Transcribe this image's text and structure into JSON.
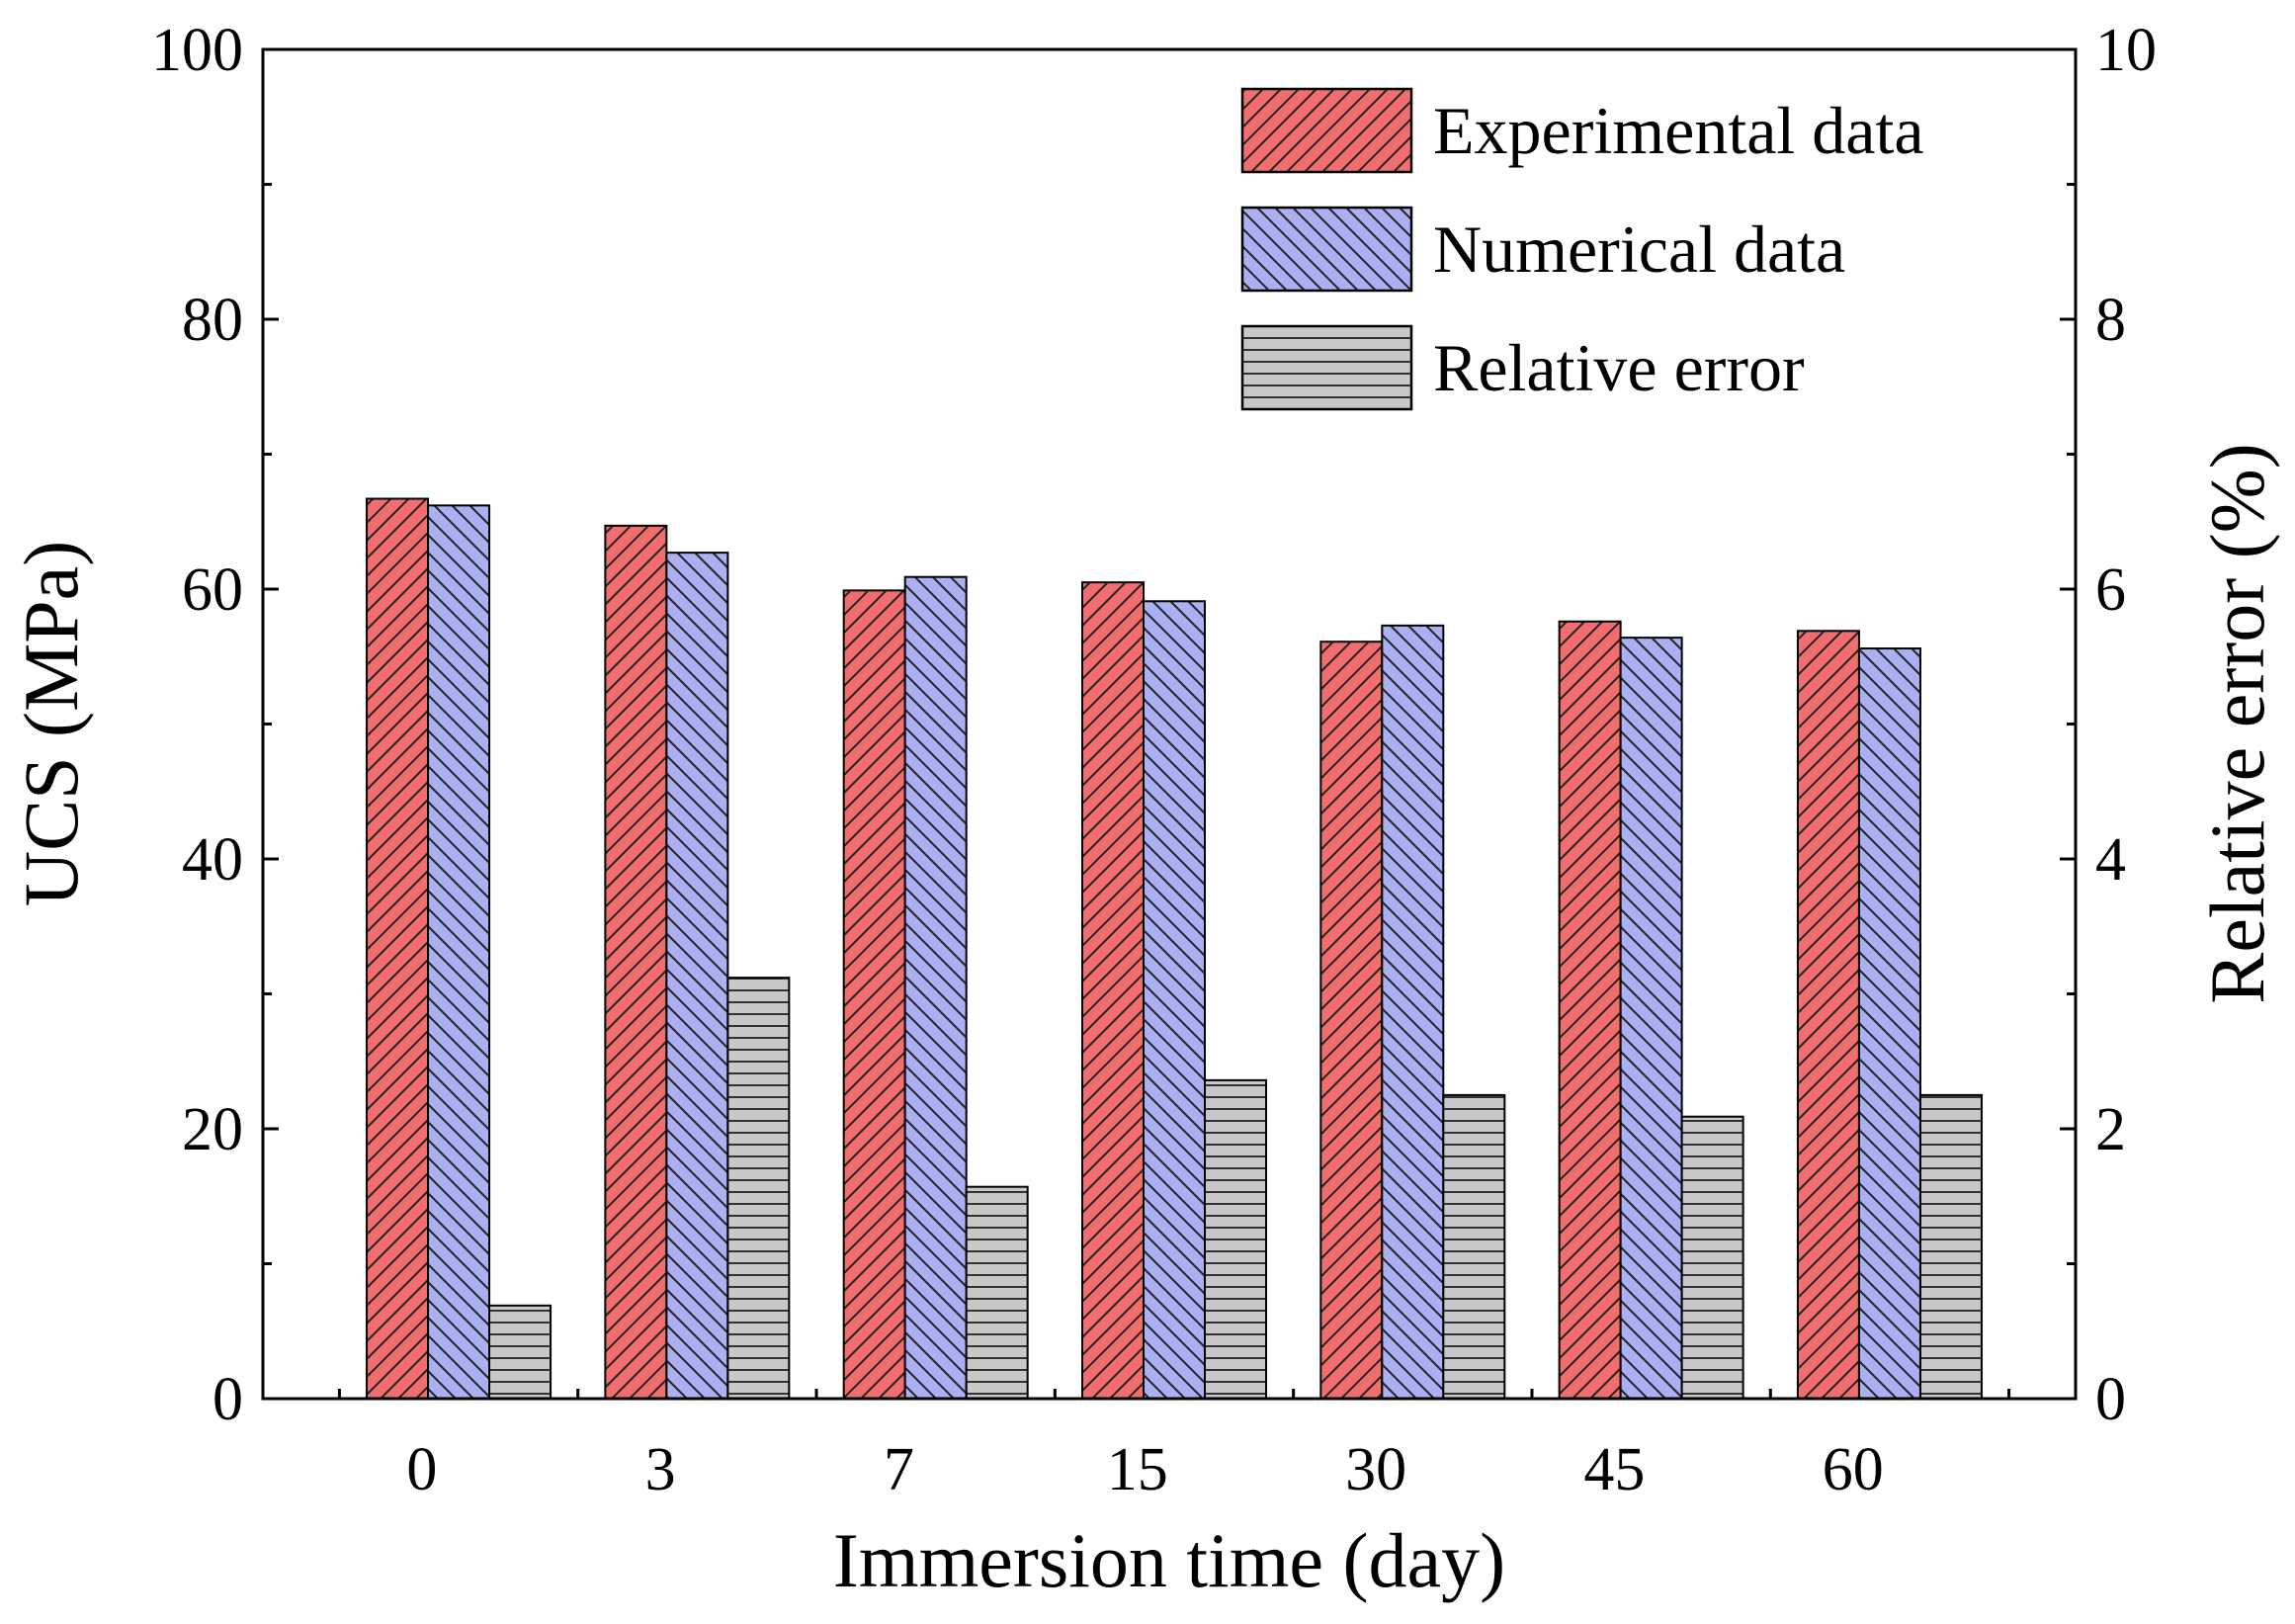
{
  "chart_data": {
    "type": "bar",
    "title": "",
    "xlabel": "Immersion time (day)",
    "ylabel": "UCS (MPa)",
    "y2label": "Relative error (%)",
    "categories": [
      "0",
      "3",
      "7",
      "15",
      "30",
      "45",
      "60"
    ],
    "ylim": [
      0,
      100
    ],
    "y2lim": [
      0,
      10
    ],
    "yticks": [
      "0",
      "20",
      "40",
      "60",
      "80",
      "100"
    ],
    "y2ticks": [
      "0",
      "2",
      "4",
      "6",
      "8",
      "10"
    ],
    "grid": false,
    "legend_position": "top-right",
    "series": [
      {
        "name": "Experimental data",
        "axis": "left",
        "color": "#f26d6d",
        "values": [
          66.7,
          64.7,
          59.9,
          60.5,
          56.1,
          57.6,
          56.9
        ]
      },
      {
        "name": "Numerical data",
        "axis": "left",
        "color": "#aab0f2",
        "values": [
          66.2,
          62.7,
          60.9,
          59.1,
          57.3,
          56.4,
          55.6
        ]
      },
      {
        "name": "Relative error",
        "axis": "right",
        "color": "#c8c8c8",
        "values": [
          0.69,
          3.12,
          1.57,
          2.36,
          2.25,
          2.09,
          2.25
        ]
      }
    ]
  }
}
